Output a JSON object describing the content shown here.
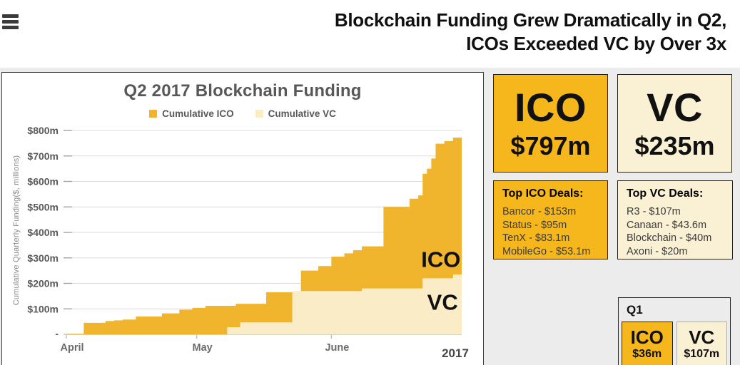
{
  "header": {
    "title_line1": "Blockchain Funding Grew Dramatically in Q2,",
    "title_line2": "ICOs Exceeded VC by Over 3x",
    "menu_icon": "hamburger-menu"
  },
  "chart_data": {
    "type": "area",
    "step": true,
    "title": "Q2 2017 Blockchain Funding",
    "ylabel": "Cumulative Quarterly Funding($, millions)",
    "xlabel": "",
    "x_domain_days": [
      0,
      91
    ],
    "x_ticks": [
      {
        "day": 0,
        "label": "April"
      },
      {
        "day": 30,
        "label": "May"
      },
      {
        "day": 61,
        "label": "June"
      }
    ],
    "year_label": "2017",
    "ylim": [
      0,
      800
    ],
    "y_tick_step": 100,
    "y_tick_labels": [
      "$100m",
      "$200m",
      "$300m",
      "$400m",
      "$500m",
      "$600m",
      "$700m",
      "$800m"
    ],
    "zero_tick_label": "-",
    "grid": "horizontal",
    "legend_position": "top-center",
    "series": [
      {
        "name": "Cumulative ICO",
        "color": "#F0B42D",
        "final_value_m": 797,
        "points": [
          [
            0,
            2
          ],
          [
            4,
            45
          ],
          [
            9,
            52
          ],
          [
            11,
            55
          ],
          [
            13,
            58
          ],
          [
            16,
            70
          ],
          [
            22,
            82
          ],
          [
            26,
            97
          ],
          [
            29,
            104
          ],
          [
            32,
            112
          ],
          [
            39,
            120
          ],
          [
            46,
            165
          ],
          [
            54,
            250
          ],
          [
            58,
            268
          ],
          [
            61,
            305
          ],
          [
            64,
            318
          ],
          [
            66,
            330
          ],
          [
            68,
            345
          ],
          [
            73,
            500
          ],
          [
            79,
            532
          ],
          [
            81,
            545
          ],
          [
            82,
            630
          ],
          [
            83,
            650
          ],
          [
            84,
            690
          ],
          [
            85,
            748
          ],
          [
            87,
            758
          ],
          [
            89,
            772
          ],
          [
            91,
            797
          ]
        ]
      },
      {
        "name": "Cumulative VC",
        "color": "#FAECC6",
        "final_value_m": 235,
        "points": [
          [
            0,
            0
          ],
          [
            37,
            28
          ],
          [
            40,
            47
          ],
          [
            52,
            170
          ],
          [
            68,
            180
          ],
          [
            82,
            220
          ],
          [
            89,
            235
          ],
          [
            91,
            235
          ]
        ]
      }
    ],
    "annotations": [
      {
        "text": "ICO",
        "day": 86.2,
        "value": 295
      },
      {
        "text": "VC",
        "day": 86.6,
        "value": 127
      }
    ]
  },
  "cards": {
    "ico_total": {
      "label": "ICO",
      "value": "$797m"
    },
    "vc_total": {
      "label": "VC",
      "value": "$235m"
    },
    "top_ico_deals": {
      "title": "Top ICO Deals:",
      "items": [
        "Bancor - $153m",
        "Status - $95m",
        "TenX - $83.1m",
        "MobileGo - $53.1m"
      ]
    },
    "top_vc_deals": {
      "title": "Top VC Deals:",
      "items": [
        "R3 - $107m",
        "Canaan - $43.6m",
        "Blockchain - $40m",
        "Axoni - $20m"
      ]
    },
    "q1": {
      "label": "Q1",
      "ico": {
        "label": "ICO",
        "value": "$36m"
      },
      "vc": {
        "label": "VC",
        "value": "$107m"
      }
    }
  },
  "colors": {
    "chart_gold": "#F0B42D",
    "chart_cream": "#FAECC6",
    "card_gold": "#F6B71D",
    "card_cream": "#FAF0D4",
    "page_bg": "#ECECEC",
    "gridline": "#DCDCDC",
    "axis_text": "#58595B",
    "header_text": "#101010"
  }
}
